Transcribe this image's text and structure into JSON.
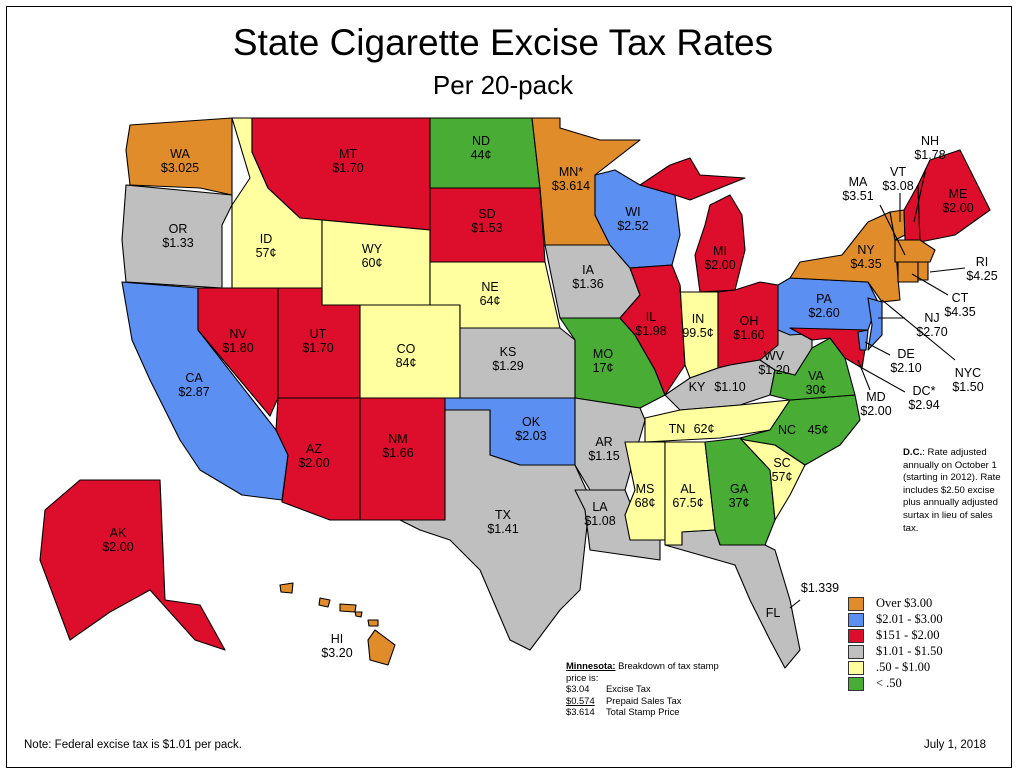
{
  "title": "State Cigarette Excise Tax Rates",
  "subtitle": "Per 20-pack",
  "colors": {
    "over_300": "#e08c2a",
    "r201_300": "#5b8ff2",
    "r151_200": "#dc0e2b",
    "r101_150": "#bfbfbf",
    "r050_100": "#ffffa0",
    "under_050": "#48ac35"
  },
  "states": {
    "wa": {
      "code": "WA",
      "rate": "$3.025",
      "category": "Over $3.00"
    },
    "or": {
      "code": "OR",
      "rate": "$1.33",
      "category": "$1.01 - $1.50"
    },
    "ca": {
      "code": "CA",
      "rate": "$2.87",
      "category": "$2.01 - $3.00"
    },
    "id": {
      "code": "ID",
      "rate": "57¢",
      "category": ".50 - $1.00"
    },
    "nv": {
      "code": "NV",
      "rate": "$1.80",
      "category": "$151 - $2.00"
    },
    "mt": {
      "code": "MT",
      "rate": "$1.70",
      "category": "$151 - $2.00"
    },
    "wy": {
      "code": "WY",
      "rate": "60¢",
      "category": ".50 - $1.00"
    },
    "ut": {
      "code": "UT",
      "rate": "$1.70",
      "category": "$151 - $2.00"
    },
    "co": {
      "code": "CO",
      "rate": "84¢",
      "category": ".50 - $1.00"
    },
    "az": {
      "code": "AZ",
      "rate": "$2.00",
      "category": "$151 - $2.00"
    },
    "nm": {
      "code": "NM",
      "rate": "$1.66",
      "category": "$151 - $2.00"
    },
    "nd": {
      "code": "ND",
      "rate": "44¢",
      "category": "< .50"
    },
    "sd": {
      "code": "SD",
      "rate": "$1.53",
      "category": "$151 - $2.00"
    },
    "ne": {
      "code": "NE",
      "rate": "64¢",
      "category": ".50 - $1.00"
    },
    "ks": {
      "code": "KS",
      "rate": "$1.29",
      "category": "$1.01 - $1.50"
    },
    "ok": {
      "code": "OK",
      "rate": "$2.03",
      "category": "$2.01 - $3.00"
    },
    "tx": {
      "code": "TX",
      "rate": "$1.41",
      "category": "$1.01 - $1.50"
    },
    "mn": {
      "code": "MN*",
      "rate": "$3.614",
      "category": "Over $3.00"
    },
    "ia": {
      "code": "IA",
      "rate": "$1.36",
      "category": "$1.01 - $1.50"
    },
    "mo": {
      "code": "MO",
      "rate": "17¢",
      "category": "< .50"
    },
    "ar": {
      "code": "AR",
      "rate": "$1.15",
      "category": "$1.01 - $1.50"
    },
    "la": {
      "code": "LA",
      "rate": "$1.08",
      "category": "$1.01 - $1.50"
    },
    "wi": {
      "code": "WI",
      "rate": "$2.52",
      "category": "$2.01 - $3.00"
    },
    "il": {
      "code": "IL",
      "rate": "$1.98",
      "category": "$151 - $2.00"
    },
    "mi": {
      "code": "MI",
      "rate": "$2.00",
      "category": "$151 - $2.00"
    },
    "in": {
      "code": "IN",
      "rate": "99.5¢",
      "category": ".50 - $1.00"
    },
    "oh": {
      "code": "OH",
      "rate": "$1.60",
      "category": "$151 - $2.00"
    },
    "ky": {
      "code": "KY",
      "rate": "$1.10",
      "category": "$1.01 - $1.50"
    },
    "tn": {
      "code": "TN",
      "rate": "62¢",
      "category": ".50 - $1.00"
    },
    "ms": {
      "code": "MS",
      "rate": "68¢",
      "category": ".50 - $1.00"
    },
    "al": {
      "code": "AL",
      "rate": "67.5¢",
      "category": ".50 - $1.00"
    },
    "ga": {
      "code": "GA",
      "rate": "37¢",
      "category": "< .50"
    },
    "fl": {
      "code": "FL",
      "rate": "$1.339",
      "category": "$1.01 - $1.50"
    },
    "sc": {
      "code": "SC",
      "rate": "57¢",
      "category": ".50 - $1.00"
    },
    "nc": {
      "code": "NC",
      "rate": "45¢",
      "category": "< .50"
    },
    "va": {
      "code": "VA",
      "rate": "30¢",
      "category": "< .50"
    },
    "wv": {
      "code": "WV",
      "rate": "$1.20",
      "category": "$1.01 - $1.50"
    },
    "pa": {
      "code": "PA",
      "rate": "$2.60",
      "category": "$2.01 - $3.00"
    },
    "ny": {
      "code": "NY",
      "rate": "$4.35",
      "category": "Over $3.00"
    },
    "nyc": {
      "code": "NYC",
      "rate": "$1.50"
    },
    "vt": {
      "code": "VT",
      "rate": "$3.08",
      "category": "Over $3.00"
    },
    "nh": {
      "code": "NH",
      "rate": "$1.78",
      "category": "$151 - $2.00"
    },
    "me": {
      "code": "ME",
      "rate": "$2.00",
      "category": "$151 - $2.00"
    },
    "ma": {
      "code": "MA",
      "rate": "$3.51",
      "category": "Over $3.00"
    },
    "ri": {
      "code": "RI",
      "rate": "$4.25",
      "category": "Over $3.00"
    },
    "ct": {
      "code": "CT",
      "rate": "$4.35",
      "category": "Over $3.00"
    },
    "nj": {
      "code": "NJ",
      "rate": "$2.70",
      "category": "$2.01 - $3.00"
    },
    "de": {
      "code": "DE",
      "rate": "$2.10",
      "category": "$2.01 - $3.00"
    },
    "md": {
      "code": "MD",
      "rate": "$2.00",
      "category": "$151 - $2.00"
    },
    "dc": {
      "code": "DC*",
      "rate": "$2.94",
      "category": "$2.01 - $3.00"
    },
    "ak": {
      "code": "AK",
      "rate": "$2.00",
      "category": "$151 - $2.00"
    },
    "hi": {
      "code": "HI",
      "rate": "$3.20",
      "category": "Over $3.00"
    }
  },
  "legend": [
    {
      "label": "Over $3.00",
      "color": "#e08c2a"
    },
    {
      "label": "$2.01 - $3.00",
      "color": "#5b8ff2"
    },
    {
      "label": "$151 - $2.00",
      "color": "#dc0e2b"
    },
    {
      "label": "$1.01 - $1.50",
      "color": "#bfbfbf"
    },
    {
      "label": ".50 - $1.00",
      "color": "#ffffa0"
    },
    {
      "label": "< .50",
      "color": "#48ac35"
    }
  ],
  "dc_note": {
    "label": "D.C.",
    "text": ": Rate adjusted annually on October 1 (starting in 2012). Rate includes $2.50 excise plus annually adjusted surtax in lieu of sales tax."
  },
  "minnesota_note": {
    "label": "Minnesota:",
    "text": " Breakdown of tax stamp price is:",
    "rows": [
      {
        "amount": "$3.04",
        "desc": "Excise Tax"
      },
      {
        "amount": "$0.574",
        "desc": "Prepaid Sales Tax"
      },
      {
        "amount": "$3.614",
        "desc": "Total Stamp Price"
      }
    ]
  },
  "footer": {
    "note": "Note:  Federal excise tax is $1.01 per pack.",
    "date": "July 1, 2018"
  }
}
